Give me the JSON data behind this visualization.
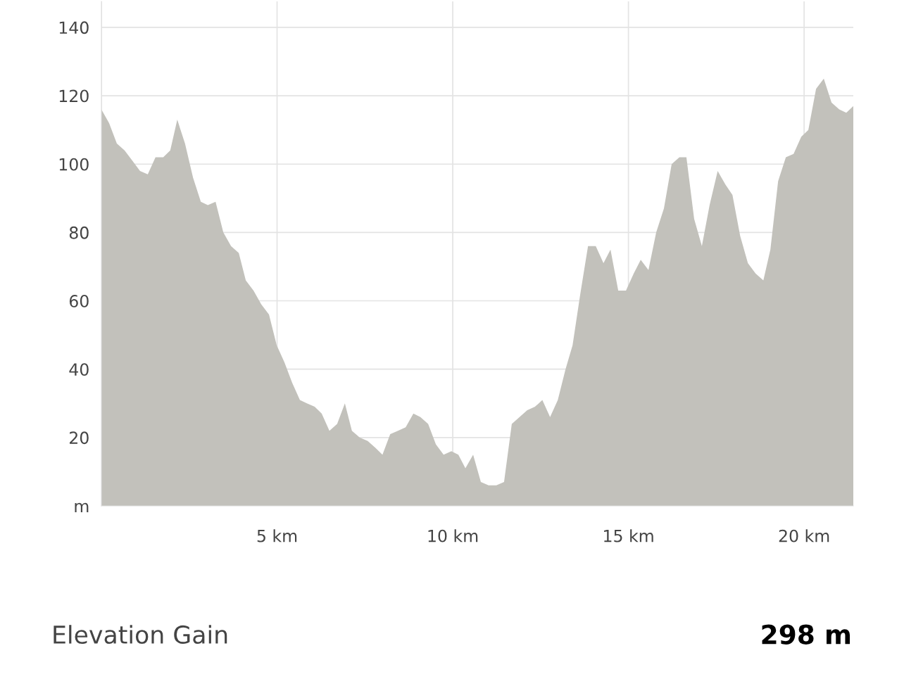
{
  "chart_data": {
    "type": "area",
    "x": [
      0,
      0.22,
      0.44,
      0.66,
      0.88,
      1.1,
      1.32,
      1.54,
      1.76,
      1.96,
      2.16,
      2.38,
      2.61,
      2.83,
      3.03,
      3.25,
      3.47,
      3.69,
      3.91,
      4.11,
      4.33,
      4.55,
      4.77,
      4.99,
      5.21,
      5.43,
      5.65,
      5.85,
      6.07,
      6.27,
      6.49,
      6.71,
      6.93,
      7.13,
      7.35,
      7.58,
      7.8,
      8.0,
      8.22,
      8.44,
      8.66,
      8.88,
      9.08,
      9.3,
      9.52,
      9.74,
      9.96,
      10.16,
      10.36,
      10.58,
      10.8,
      11.02,
      11.24,
      11.46,
      11.68,
      11.9,
      12.12,
      12.34,
      12.55,
      12.77,
      12.99,
      13.21,
      13.41,
      13.63,
      13.85,
      14.07,
      14.29,
      14.49,
      14.71,
      14.93,
      15.15,
      15.35,
      15.57,
      15.79,
      16.01,
      16.23,
      16.45,
      16.65,
      16.87,
      17.09,
      17.31,
      17.54,
      17.76,
      17.96,
      18.18,
      18.4,
      18.62,
      18.84,
      19.04,
      19.26,
      19.48,
      19.7,
      19.92,
      20.12,
      20.34,
      20.56,
      20.78,
      21.0,
      21.2,
      21.4
    ],
    "series": [
      {
        "color": "#c2c1bb",
        "values": [
          116,
          112,
          106,
          104,
          101,
          98,
          97,
          102,
          102,
          104,
          113,
          106,
          96,
          89,
          88,
          89,
          80,
          76,
          74,
          66,
          63,
          59,
          56,
          47,
          42,
          36,
          31,
          30,
          29,
          27,
          22,
          24,
          30,
          22,
          20,
          19,
          17,
          15,
          21,
          22,
          23,
          27,
          26,
          24,
          18,
          15,
          16,
          15,
          11,
          15,
          7,
          6,
          6,
          7,
          24,
          26,
          28,
          29,
          31,
          26,
          31,
          40,
          47,
          62,
          76,
          76,
          71,
          75,
          63,
          63,
          68,
          72,
          69,
          80,
          87,
          100,
          102,
          102,
          84,
          76,
          88,
          98,
          94,
          91,
          79,
          71,
          68,
          66,
          75,
          95,
          102,
          103,
          108,
          110,
          122,
          125,
          118,
          116,
          115,
          117
        ]
      }
    ],
    "xlim": [
      0,
      21.4
    ],
    "ylim": [
      0,
      147.6
    ],
    "xticks": [
      {
        "value": 0,
        "label": null
      },
      {
        "value": 5,
        "label": "5 km"
      },
      {
        "value": 10,
        "label": "10 km"
      },
      {
        "value": 15,
        "label": "15 km"
      },
      {
        "value": 20,
        "label": "20 km"
      }
    ],
    "yticks": [
      {
        "value": 0,
        "label": "m"
      },
      20,
      40,
      60,
      80,
      100,
      120,
      140
    ],
    "grid": true,
    "annotations": [
      "Elevation Gain",
      "298 m"
    ]
  }
}
